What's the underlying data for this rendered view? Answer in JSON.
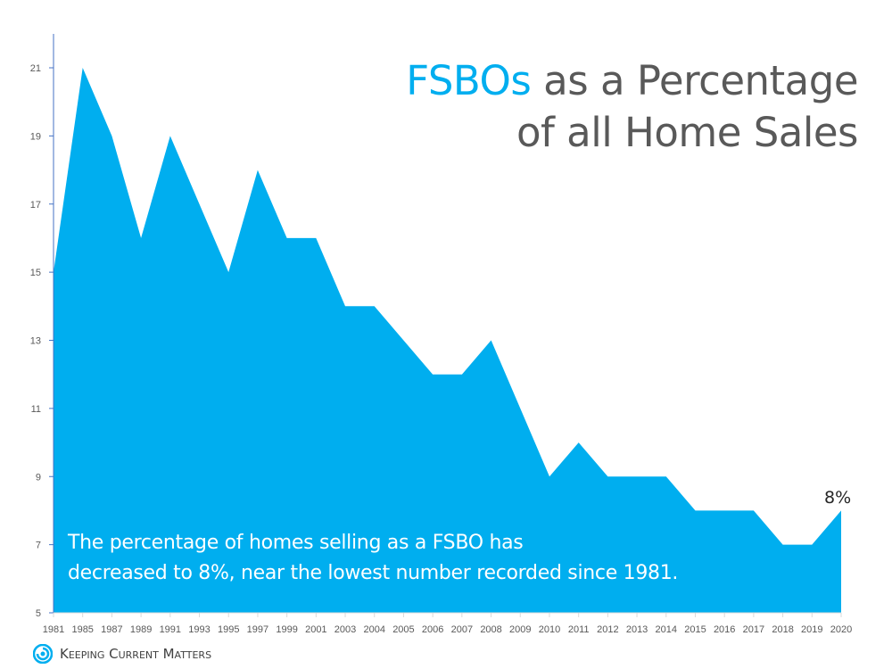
{
  "title": {
    "accent": "FSBOs",
    "line1_rest": " as a Percentage",
    "line2": "of all Home Sales"
  },
  "caption": {
    "line1": "The percentage of homes selling as a FSBO has",
    "line2": "decreased to 8%, near the lowest number recorded since 1981."
  },
  "end_label": "8%",
  "logo": {
    "text": "Keeping Current Matters",
    "icon": "swirl-logo-icon"
  },
  "colors": {
    "accent": "#00AEEF",
    "title_gray": "#595959",
    "axis": "#4472C4"
  },
  "chart_data": {
    "type": "area",
    "title": "FSBOs as a Percentage of all Home Sales",
    "xlabel": "",
    "ylabel": "",
    "categories": [
      "1981",
      "1985",
      "1987",
      "1989",
      "1991",
      "1993",
      "1995",
      "1997",
      "1999",
      "2001",
      "2003",
      "2004",
      "2005",
      "2006",
      "2007",
      "2008",
      "2009",
      "2010",
      "2011",
      "2012",
      "2013",
      "2014",
      "2015",
      "2016",
      "2017",
      "2018",
      "2019",
      "2020"
    ],
    "values": [
      15,
      21,
      19,
      16,
      19,
      17,
      15,
      18,
      16,
      16,
      14,
      14,
      13,
      12,
      12,
      13,
      11,
      9,
      10,
      9,
      9,
      9,
      8,
      8,
      8,
      7,
      7,
      8
    ],
    "y_ticks": [
      5,
      7,
      9,
      11,
      13,
      15,
      17,
      19,
      21
    ],
    "ylim": [
      5,
      22
    ],
    "grid": false,
    "legend": "none",
    "annotations": [
      {
        "x": "2020",
        "text": "8%"
      },
      {
        "text": "The percentage of homes selling as a FSBO has decreased to 8%, near the lowest number recorded since 1981."
      }
    ]
  }
}
